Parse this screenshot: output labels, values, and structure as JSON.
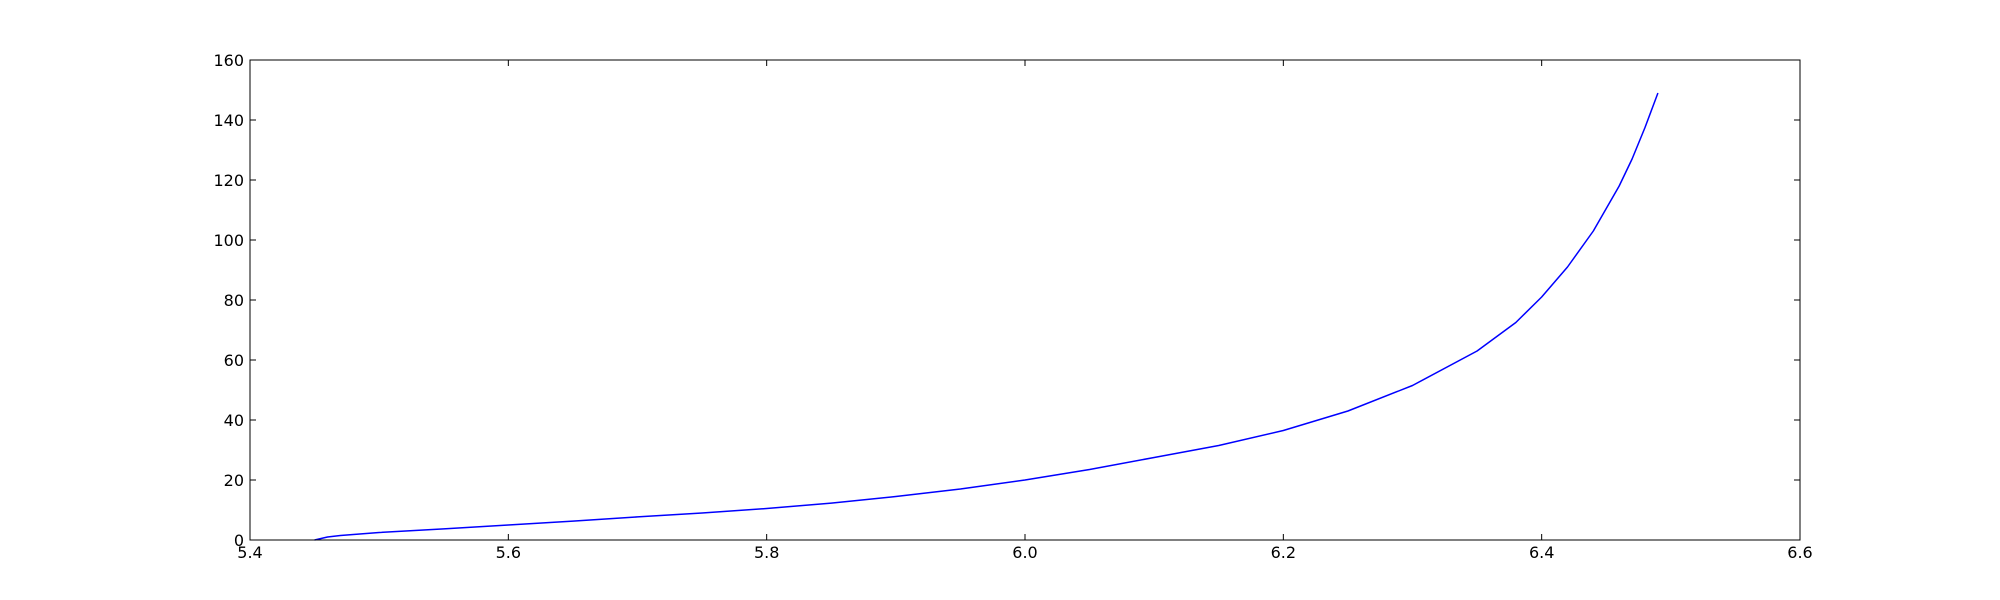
{
  "chart_data": {
    "type": "line",
    "title": "",
    "xlabel": "",
    "ylabel": "",
    "xlim": [
      5.4,
      6.6
    ],
    "ylim": [
      0,
      160
    ],
    "xticks": [
      5.4,
      5.6,
      5.8,
      6.0,
      6.2,
      6.4,
      6.6
    ],
    "xtick_labels": [
      "5.4",
      "5.6",
      "5.8",
      "6.0",
      "6.2",
      "6.4",
      "6.6"
    ],
    "yticks": [
      0,
      20,
      40,
      60,
      80,
      100,
      120,
      140,
      160
    ],
    "ytick_labels": [
      "0",
      "20",
      "40",
      "60",
      "80",
      "100",
      "120",
      "140",
      "160"
    ],
    "grid": false,
    "legend": "none",
    "series": [
      {
        "color": "#0000ff",
        "x": [
          5.45,
          5.455,
          5.46,
          5.47,
          5.5,
          5.55,
          5.6,
          5.65,
          5.7,
          5.75,
          5.8,
          5.85,
          5.9,
          5.95,
          6.0,
          6.05,
          6.1,
          6.15,
          6.2,
          6.25,
          6.3,
          6.35,
          6.38,
          6.4,
          6.42,
          6.44,
          6.46,
          6.47,
          6.48,
          6.49
        ],
        "y": [
          0,
          0.5,
          1,
          1.5,
          2.5,
          3.7,
          5,
          6.3,
          7.7,
          9,
          10.5,
          12.3,
          14.5,
          17,
          20,
          23.5,
          27.5,
          31.5,
          36.5,
          43,
          51.5,
          63,
          72.5,
          81,
          91,
          103,
          118,
          127,
          137.5,
          149
        ]
      }
    ]
  }
}
